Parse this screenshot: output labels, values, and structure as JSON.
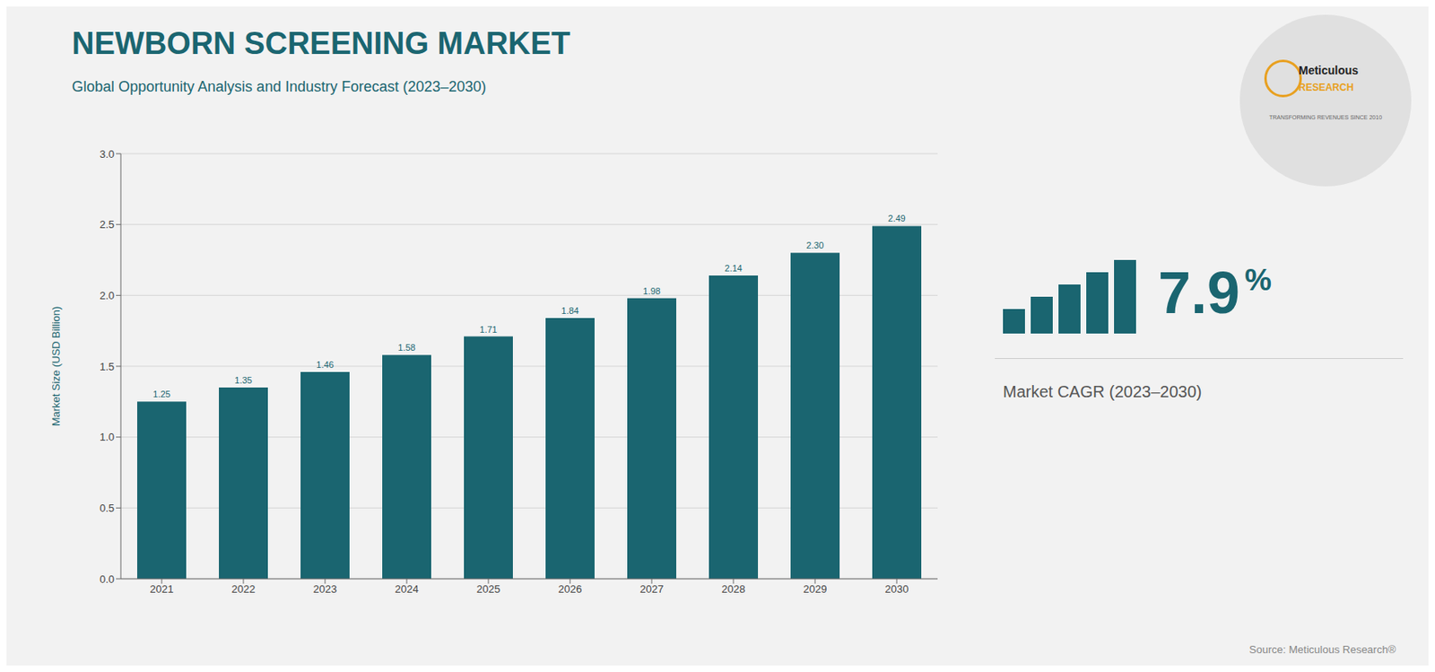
{
  "chart_data": {
    "type": "bar",
    "title": "NEWBORN SCREENING MARKET",
    "subtitle": "Global Opportunity Analysis and Industry Forecast (2023–2030)",
    "categories": [
      "2021",
      "2022",
      "2023",
      "2024",
      "2025",
      "2026",
      "2027",
      "2028",
      "2029",
      "2030"
    ],
    "values": [
      1.25,
      1.35,
      1.46,
      1.58,
      1.71,
      1.84,
      1.98,
      2.14,
      2.3,
      2.49
    ],
    "value_labels": [
      "1.25",
      "1.35",
      "1.46",
      "1.58",
      "1.71",
      "1.84",
      "1.98",
      "2.14",
      "2.30",
      "2.49"
    ],
    "data_labels": true,
    "color": "#1a6570",
    "y_label": "Market Size (USD Billion)",
    "ylim": [
      0,
      3.0
    ],
    "yticks": [
      {
        "value": 0,
        "label": "0.0"
      },
      0.5,
      {
        "value": 1,
        "label": "1.0"
      },
      1.5,
      {
        "value": 2,
        "label": "2.0"
      },
      2.5,
      {
        "value": 3,
        "label": "3.0"
      }
    ],
    "grid": true,
    "annotations": [
      "7.9",
      "%",
      "Market CAGR (2023–2030)",
      "Source: Meticulous Research®",
      "Meticulous",
      "RESEARCH",
      "TRANSFORMING REVENUES SINCE 2010"
    ]
  }
}
